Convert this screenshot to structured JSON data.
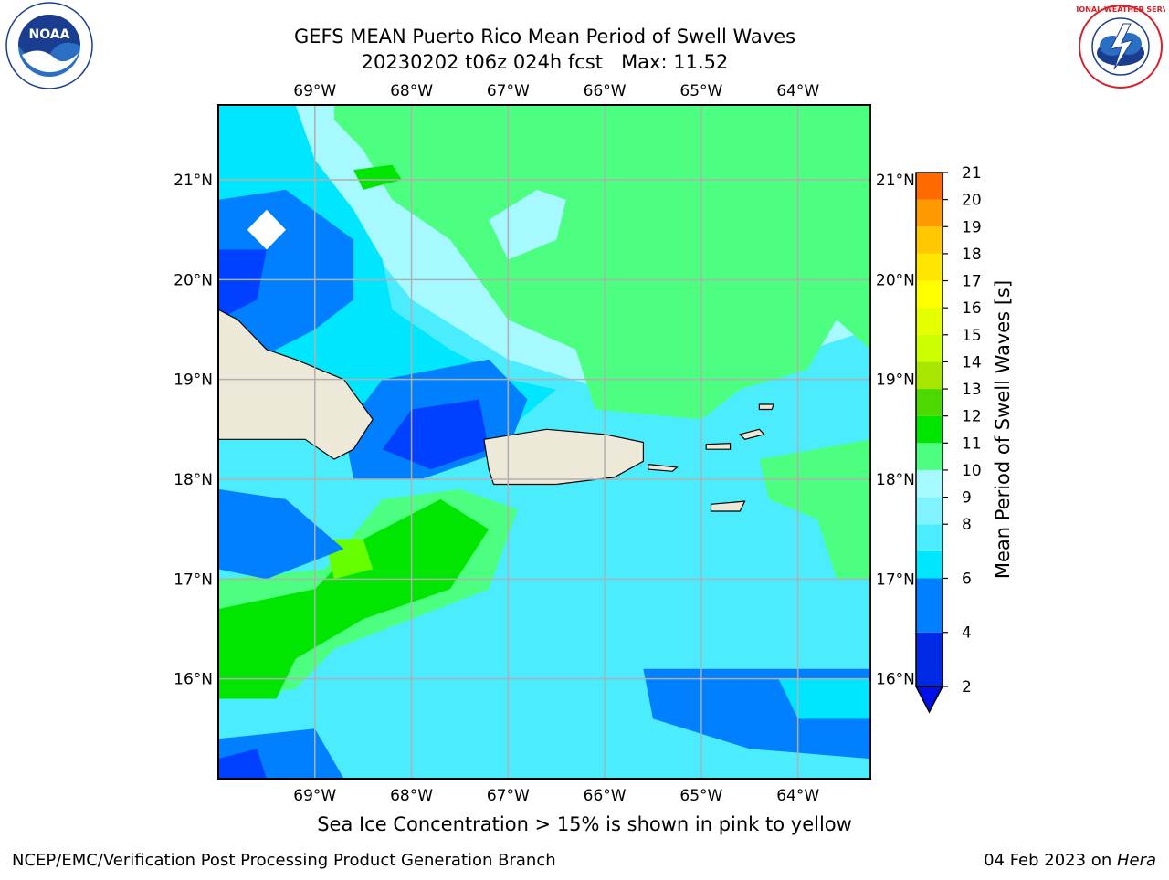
{
  "chart_data": {
    "type": "heatmap",
    "title": "GEFS MEAN Puerto Rico Mean Period of Swell Waves",
    "subtitle_date": "20230202 t06z 024h fcst",
    "subtitle_max": "Max: 11.52",
    "x_ticks": [
      "69°W",
      "68°W",
      "67°W",
      "66°W",
      "65°W",
      "64°W"
    ],
    "x_tick_values": [
      -69,
      -68,
      -67,
      -66,
      -65,
      -64
    ],
    "y_ticks": [
      "21°N",
      "20°N",
      "19°N",
      "18°N",
      "17°N",
      "16°N"
    ],
    "y_tick_values": [
      21,
      20,
      19,
      18,
      17,
      16
    ],
    "xlim": [
      -70.0,
      -63.25
    ],
    "ylim": [
      15.0,
      21.75
    ],
    "grid": true,
    "colorbar": {
      "label": "Mean Period of Swell Waves [s]",
      "levels": [
        2,
        4,
        6,
        7,
        8,
        9,
        10,
        11,
        12,
        13,
        14,
        15,
        16,
        17,
        18,
        19,
        20,
        21
      ],
      "tick_labels": [
        "2",
        "4",
        "6",
        "8",
        "9",
        "10",
        "11",
        "12",
        "13",
        "14",
        "15",
        "16",
        "17",
        "18",
        "19",
        "20",
        "21"
      ],
      "colors": [
        "#0029e6",
        "#007fff",
        "#00e6ff",
        "#4cecff",
        "#80f3ff",
        "#a6faff",
        "#4dff80",
        "#00e600",
        "#4cd800",
        "#a6e600",
        "#ccff00",
        "#e6ff00",
        "#ffff00",
        "#ffe600",
        "#ffc800",
        "#ff9900",
        "#ff6a00",
        "#ff3300",
        "#ff0000"
      ],
      "extend": "min",
      "under_color": "#0010e6"
    },
    "max_value": 11.52,
    "caption": "Sea Ice Concentration > 15% is shown in pink to yellow",
    "colors": {
      "land": "#ece9d8",
      "ocean_base": "#4cecff"
    }
  },
  "footer": {
    "left": "NCEP/EMC/Verification Post Processing Product Generation Branch",
    "right_date": "04 Feb 2023 on ",
    "right_host": "Hera"
  },
  "logos": {
    "left": "NOAA",
    "right": "NATIONAL WEATHER SERVICE"
  }
}
